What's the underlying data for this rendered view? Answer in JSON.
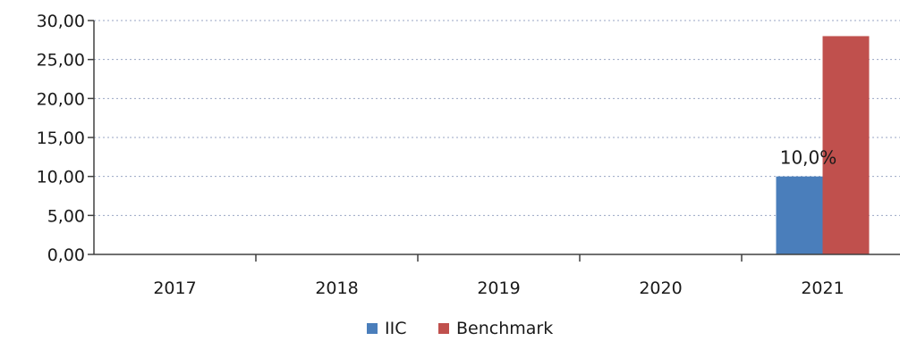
{
  "chart_data": {
    "type": "bar",
    "categories": [
      "2017",
      "2018",
      "2019",
      "2020",
      "2021"
    ],
    "series": [
      {
        "name": "IIC",
        "color": "#4a7ebb",
        "values": [
          null,
          null,
          null,
          null,
          10.0
        ]
      },
      {
        "name": "Benchmark",
        "color": "#c0504d",
        "values": [
          null,
          null,
          null,
          null,
          28.0
        ]
      }
    ],
    "ylim": [
      0,
      30
    ],
    "y_ticks": [
      "0,00",
      "5,00",
      "10,00",
      "15,00",
      "20,00",
      "25,00",
      "30,00"
    ],
    "y_tick_values": [
      0,
      5,
      10,
      15,
      20,
      25,
      30
    ],
    "data_labels": [
      {
        "series": "IIC",
        "category": "2021",
        "text": "10,0%"
      }
    ],
    "grid": "horizontal-dotted",
    "legend_position": "bottom"
  }
}
